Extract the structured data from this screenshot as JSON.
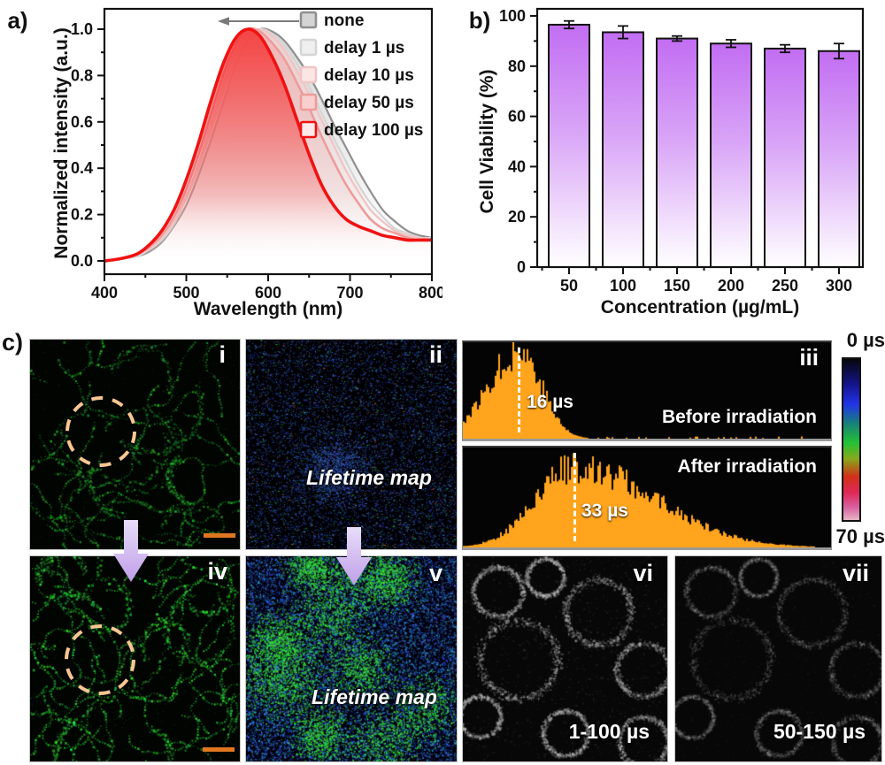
{
  "figure": {
    "panel_a_label": "a)",
    "panel_b_label": "b)"
  },
  "chart_data": [
    {
      "id": "a",
      "type": "line",
      "xlabel": "Wavelength (nm)",
      "ylabel": "Normalized intensity (a.u.)",
      "xlim": [
        400,
        800
      ],
      "ylim": [
        0.0,
        1.0
      ],
      "xticks": [
        400,
        500,
        600,
        700,
        800
      ],
      "yticks": [
        0.0,
        0.2,
        0.4,
        0.6,
        0.8,
        1.0
      ],
      "ytick_labels": [
        "0.0",
        "0.2",
        "0.4",
        "0.6",
        "0.8",
        "1.0"
      ],
      "legend_position": "top-right",
      "annotation": "gray arrow pointing left (blue-shift with delay)",
      "x_nm": [
        400,
        420,
        440,
        455,
        470,
        485,
        500,
        515,
        530,
        545,
        560,
        575,
        590,
        605,
        620,
        635,
        650,
        665,
        680,
        695,
        710,
        725,
        740,
        755,
        770,
        785,
        800
      ],
      "series": [
        {
          "name": "none",
          "peak_nm": 593,
          "color": "#8f8f8f",
          "fill": "#b5b5b5",
          "legend_fill": "#d4d4d4",
          "width": 2.2,
          "fill_opacity": 0.55,
          "y": [
            0.0,
            0.01,
            0.02,
            0.04,
            0.08,
            0.15,
            0.24,
            0.37,
            0.52,
            0.68,
            0.84,
            0.95,
            1.0,
            0.99,
            0.95,
            0.88,
            0.8,
            0.7,
            0.59,
            0.49,
            0.39,
            0.3,
            0.22,
            0.17,
            0.13,
            0.11,
            0.1
          ]
        },
        {
          "name": "delay 1 µs",
          "peak_nm": 589,
          "color": "#d5d5d5",
          "fill": "#e2e2e2",
          "legend_fill": "#efefef",
          "width": 2.2,
          "fill_opacity": 0.5,
          "y": [
            0.0,
            0.01,
            0.02,
            0.05,
            0.09,
            0.16,
            0.27,
            0.4,
            0.56,
            0.73,
            0.87,
            0.96,
            1.0,
            0.98,
            0.93,
            0.85,
            0.75,
            0.64,
            0.53,
            0.43,
            0.33,
            0.25,
            0.19,
            0.14,
            0.12,
            0.1,
            0.1
          ]
        },
        {
          "name": "delay 10 µs",
          "peak_nm": 585,
          "color": "#f2c4c4",
          "fill": "#f6caca",
          "legend_fill": "#fbe6e6",
          "width": 2.4,
          "fill_opacity": 0.55,
          "y": [
            0.0,
            0.01,
            0.03,
            0.05,
            0.1,
            0.17,
            0.28,
            0.42,
            0.59,
            0.76,
            0.9,
            0.98,
            1.0,
            0.97,
            0.91,
            0.82,
            0.72,
            0.61,
            0.5,
            0.39,
            0.3,
            0.22,
            0.17,
            0.13,
            0.11,
            0.1,
            0.09
          ]
        },
        {
          "name": "delay 50 µs",
          "peak_nm": 580,
          "color": "#ee9b9b",
          "fill": "#f3a6a6",
          "legend_fill": "#f9cfcf",
          "width": 2.6,
          "fill_opacity": 0.6,
          "y": [
            0.0,
            0.01,
            0.03,
            0.06,
            0.11,
            0.19,
            0.31,
            0.46,
            0.63,
            0.8,
            0.93,
            1.0,
            0.99,
            0.94,
            0.87,
            0.77,
            0.66,
            0.54,
            0.43,
            0.33,
            0.25,
            0.18,
            0.14,
            0.12,
            0.1,
            0.09,
            0.09
          ]
        },
        {
          "name": "delay 100 µs",
          "peak_nm": 575,
          "color": "#f01212",
          "fill": "#f53535",
          "legend_fill": "#fdeaea",
          "width": 3.6,
          "fill_opacity": 0.88,
          "y": [
            0.0,
            0.01,
            0.03,
            0.07,
            0.13,
            0.22,
            0.35,
            0.51,
            0.69,
            0.85,
            0.96,
            1.0,
            0.97,
            0.88,
            0.76,
            0.61,
            0.46,
            0.33,
            0.24,
            0.18,
            0.15,
            0.13,
            0.11,
            0.1,
            0.09,
            0.09,
            0.09
          ]
        }
      ]
    },
    {
      "id": "b",
      "type": "bar",
      "xlabel": "Concentration  (µg/mL)",
      "ylabel": "Cell Viability (%)",
      "ylim": [
        0,
        100
      ],
      "yticks": [
        0,
        20,
        40,
        60,
        80,
        100
      ],
      "categories": [
        "50",
        "100",
        "150",
        "200",
        "250",
        "300"
      ],
      "values": [
        96.5,
        93.5,
        91,
        89,
        87,
        86
      ],
      "errors": [
        1.5,
        2.5,
        1.0,
        1.5,
        1.5,
        3.0
      ],
      "bar_top_color": "#c26df2",
      "bar_mid_color": "#d9a6f7",
      "bar_bottom_color": "#ffffff",
      "bar_outline": "#111111"
    },
    {
      "id": "c-iii",
      "type": "histogram-pair",
      "color": "#ffa41c",
      "range_us": [
        0,
        70
      ],
      "panels": [
        {
          "title": "Before irradiation",
          "peak_label": "16 µs",
          "peak_us": 16,
          "peak_frac": 0.152,
          "sigma_left": 0.085,
          "sigma_right": 0.06,
          "height_frac": 0.9
        },
        {
          "title": "After irradiation",
          "peak_label": "33 µs",
          "peak_us": 33,
          "peak_frac": 0.303,
          "sigma_left": 0.105,
          "sigma_right": 0.215,
          "height_frac": 0.8
        }
      ]
    }
  ],
  "panel_c": {
    "label": "c)",
    "colorbar": {
      "top_label": "0 µs",
      "bottom_label": "70 µs",
      "min_us": 0,
      "max_us": 70,
      "stops": [
        "#06060c 0%",
        "#14148c 16%",
        "#2233e8 28%",
        "#17807a 40%",
        "#22c234 52%",
        "#88a81c 62%",
        "#d03018 73%",
        "#e02858 83%",
        "#d860a0 92%",
        "#e8b4c4 100%"
      ]
    },
    "images": {
      "i": {
        "label": "i",
        "label_color": "#f1a75d"
      },
      "ii": {
        "label": "ii",
        "label_color": "#ffffff",
        "caption": "Lifetime map"
      },
      "iii": {
        "label": "iii",
        "label_color": "#ffffff"
      },
      "iv": {
        "label": "iv",
        "label_color": "#f6ecd9"
      },
      "v": {
        "label": "v",
        "label_color": "#ffffff",
        "caption": "Lifetime map"
      },
      "vi": {
        "label": "vi",
        "label_color": "#ffffff",
        "window": "1-100 µs"
      },
      "vii": {
        "label": "vii",
        "label_color": "#ffffff",
        "window": "50-150 µs"
      }
    }
  }
}
